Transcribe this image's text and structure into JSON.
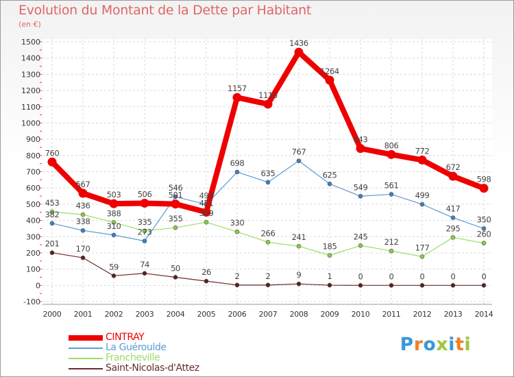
{
  "header": {
    "title": "Evolution du Montant de la Dette par Habitant",
    "unit": "(en €)"
  },
  "logo": {
    "text": "Proxiti",
    "colors": [
      "#3399dd",
      "#f08020",
      "#3399dd",
      "#99cc33",
      "#3399dd",
      "#f08020",
      "#99cc33"
    ]
  },
  "chart_data": {
    "type": "line",
    "title": "Evolution du Montant de la Dette par Habitant",
    "subtitle": "(en €)",
    "xlabel": "",
    "ylabel": "",
    "x": [
      "2000",
      "2001",
      "2002",
      "2003",
      "2004",
      "2005",
      "2006",
      "2007",
      "2008",
      "2009",
      "2010",
      "2011",
      "2012",
      "2013",
      "2014"
    ],
    "ylim": [
      -100,
      1500
    ],
    "yticks": [
      -100,
      0,
      100,
      200,
      300,
      400,
      500,
      600,
      700,
      800,
      900,
      1000,
      1100,
      1200,
      1300,
      1400,
      1500
    ],
    "grid": true,
    "legend_position": "bottom-left",
    "series": [
      {
        "name": "CINTRAY",
        "color": "#ee0000",
        "values": [
          760,
          567,
          503,
          506,
          501,
          451,
          1157,
          1116,
          1436,
          1264,
          843,
          806,
          772,
          672,
          598
        ]
      },
      {
        "name": "La Guéroulde",
        "color": "#5b9bd5",
        "values": [
          382,
          338,
          310,
          273,
          546,
          498,
          698,
          635,
          767,
          625,
          549,
          561,
          499,
          417,
          350
        ]
      },
      {
        "name": "Francheville",
        "color": "#99dd66",
        "values": [
          453,
          436,
          388,
          335,
          355,
          389,
          330,
          266,
          241,
          185,
          245,
          212,
          177,
          295,
          260
        ]
      },
      {
        "name": "Saint-Nicolas-d'Attez",
        "color": "#6b2a2a",
        "values": [
          201,
          170,
          59,
          74,
          50,
          26,
          2,
          2,
          9,
          1,
          0,
          0,
          0,
          0,
          0
        ]
      }
    ],
    "data_labels": {
      "CINTRAY": [
        "760",
        "567",
        "503",
        "506",
        "501",
        "451",
        "1157",
        "1116",
        "1436",
        "1264",
        "843",
        "806",
        "772",
        "672",
        "598"
      ],
      "La Guéroulde": [
        "382",
        "338",
        "310",
        "273",
        "546",
        "498",
        "698",
        "635",
        "767",
        "625",
        "549",
        "561",
        "499",
        "417",
        "350"
      ],
      "Francheville": [
        "453",
        "436",
        "388",
        "335",
        "355",
        "389",
        "330",
        "266",
        "241",
        "185",
        "245",
        "212",
        "177",
        "295",
        "260"
      ],
      "Saint-Nicolas-d'Attez": [
        "201",
        "170",
        "59",
        "74",
        "50",
        "26",
        "2",
        "2",
        "9",
        "1",
        "0",
        "0",
        "0",
        "0",
        "0"
      ]
    }
  }
}
